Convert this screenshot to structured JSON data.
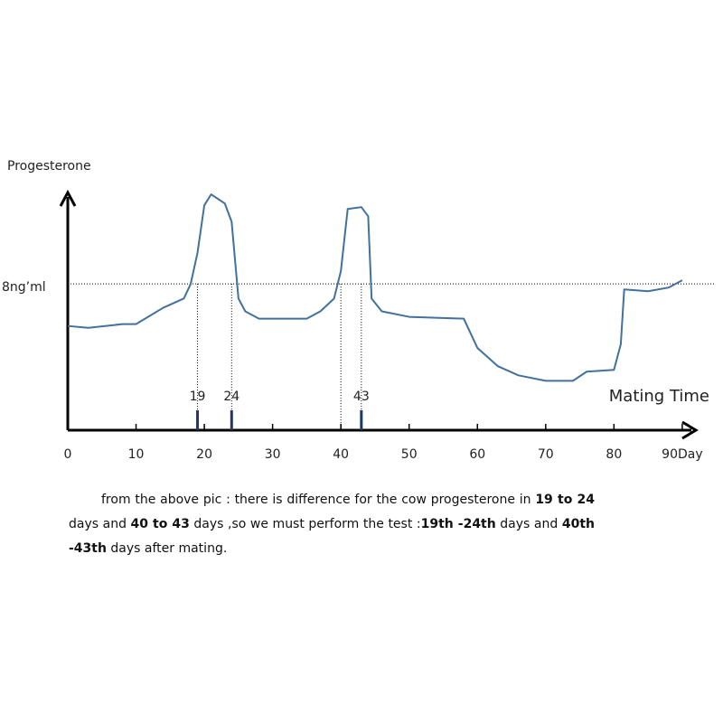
{
  "chart_data": {
    "type": "line",
    "y_label": "Progesterone",
    "annotation": "Mating Time",
    "x": [
      0,
      3,
      8,
      10,
      14,
      17,
      18,
      19,
      20,
      21,
      23,
      24,
      25,
      26,
      28,
      35,
      37,
      39,
      40,
      41,
      43,
      44,
      44.5,
      46,
      50,
      58,
      60,
      63,
      66,
      70,
      74,
      76,
      80,
      81,
      81.5,
      85,
      88,
      90
    ],
    "series": [
      {
        "color": "#41719c",
        "values": [
          5.7,
          5.6,
          5.8,
          5.8,
          6.7,
          7.2,
          8,
          9.7,
          12.3,
          12.9,
          12.4,
          11.4,
          7.2,
          6.5,
          6.1,
          6.1,
          6.5,
          7.2,
          8.7,
          12.1,
          12.2,
          11.7,
          7.2,
          6.5,
          6.2,
          6.1,
          4.5,
          3.5,
          3.0,
          2.7,
          2.7,
          3.2,
          3.3,
          4.7,
          7.7,
          7.6,
          7.8,
          8.2
        ]
      }
    ],
    "markers": [
      19,
      24,
      43
    ],
    "dotted_lines": [
      19,
      24,
      40,
      43
    ],
    "xlim": [
      0,
      92
    ],
    "xticks": [
      0,
      10,
      20,
      30,
      40,
      50,
      60,
      70,
      80,
      {
        "value": 90,
        "label": "90Day"
      }
    ],
    "ylim": [
      0,
      13
    ],
    "yticks": [
      {
        "value": 8,
        "label": "8ng’ml"
      }
    ]
  },
  "text": {
    "paragraph": [
      {
        "text": "from the above pic : there is difference for the cow progesterone in ",
        "bold": false
      },
      {
        "text": "19 to 24",
        "bold": true
      },
      {
        "text": " days and ",
        "bold": false
      },
      {
        "text": "40 to 43",
        "bold": true
      },
      {
        "text": " days ,so we must  perform the test :",
        "bold": false
      },
      {
        "text": "19th -24th",
        "bold": true
      },
      {
        "text": " days and ",
        "bold": false
      },
      {
        "text": "40th -43th",
        "bold": true
      },
      {
        "text": " days after mating.",
        "bold": false
      }
    ]
  }
}
